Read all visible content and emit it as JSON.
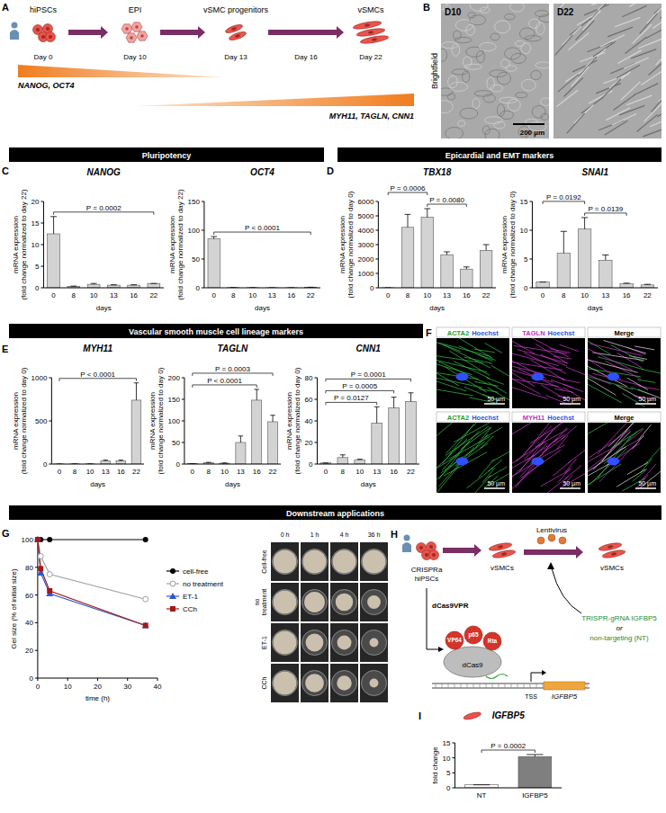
{
  "panel_letters": [
    "A",
    "B",
    "C",
    "D",
    "E",
    "F",
    "G",
    "H",
    "I"
  ],
  "section_headers": [
    "Pluripotency",
    "Epicardial and EMT markers",
    "Vascular smooth muscle cell lineage markers",
    "Downstream applications"
  ],
  "panel_A": {
    "stages": [
      "hiPSCs",
      "EPI",
      "vSMC progenitors",
      "vSMCs"
    ],
    "days": [
      "Day 0",
      "Day 10",
      "Day 13",
      "Day 16",
      "Day 22"
    ],
    "decreasing": "NANOG, OCT4",
    "increasing": "MYH11, TAGLN, CNN1"
  },
  "panel_B": {
    "side_label": "Brightfield",
    "images": [
      "D10",
      "D22"
    ],
    "scale_bar": "200 µm"
  },
  "panel_F": {
    "rows": [
      [
        [
          "ACTA2",
          "Hoechst"
        ],
        [
          "TAGLN",
          "Hoechst"
        ],
        [
          "Merge"
        ]
      ],
      [
        [
          "ACTA2",
          "Hoechst"
        ],
        [
          "MYH11",
          "Hoechst"
        ],
        [
          "Merge"
        ]
      ]
    ],
    "scale_bar": "50 µm"
  },
  "panel_G": {
    "columns": [
      "0 h",
      "1 h",
      "4 h",
      "36 h"
    ],
    "rows": [
      "Cell-free",
      "no treatment",
      "ET-1",
      "CCh"
    ]
  },
  "panel_H": {
    "start": "CRISPRa hiPSCs",
    "cells": "vSMCs",
    "virus": "Lentivirus",
    "end": "vSMCs",
    "construct": "dCas9VPR",
    "domains": [
      "VP64",
      "p65",
      "Rta"
    ],
    "protein": "dCas9",
    "tss": "TSS",
    "gene": "IGFBP5",
    "guide": "TRISPR-gRNA IGFBP5",
    "or": "or",
    "control": "non-targeting (NT)"
  },
  "chart_data": [
    {
      "type": "bar",
      "title": "NANOG",
      "categories": [
        "0",
        "8",
        "10",
        "13",
        "16",
        "22"
      ],
      "values": [
        12.5,
        0.3,
        0.8,
        0.6,
        0.6,
        1
      ],
      "errors": [
        4,
        0.1,
        0.2,
        0.1,
        0.1,
        0
      ],
      "color": "#d3d3d3",
      "xlabel": "days",
      "ylabel": [
        "mRNA expression",
        "(fold change normalized to day 22)"
      ],
      "ylim": [
        0,
        20
      ],
      "yticks": [
        0,
        5,
        10,
        15,
        20
      ],
      "annotations": [
        {
          "text": "P = 0.0002",
          "from": "0",
          "to": "22"
        }
      ]
    },
    {
      "type": "bar",
      "title": "OCT4",
      "categories": [
        "0",
        "8",
        "10",
        "13",
        "16",
        "22"
      ],
      "values": [
        85,
        0.3,
        0.2,
        0.1,
        0.1,
        1
      ],
      "errors": [
        4,
        0.1,
        0.1,
        0,
        0,
        0
      ],
      "color": "#d3d3d3",
      "xlabel": "days",
      "ylabel": [
        "mRNA expression",
        "(fold change normalized to day 22)"
      ],
      "ylim": [
        0,
        150
      ],
      "yticks": [
        0,
        50,
        100,
        150
      ],
      "annotations": [
        {
          "text": "P < 0.0001",
          "from": "0",
          "to": "22"
        }
      ]
    },
    {
      "type": "bar",
      "title": "TBX18",
      "categories": [
        "0",
        "8",
        "10",
        "13",
        "16",
        "22"
      ],
      "values": [
        1,
        4200,
        4900,
        2300,
        1300,
        2600
      ],
      "errors": [
        0,
        900,
        600,
        200,
        150,
        400
      ],
      "color": "#d3d3d3",
      "xlabel": "days",
      "ylabel": [
        "mRNA expression",
        "(fold change normalized to day 0)"
      ],
      "ylim": [
        0,
        6000
      ],
      "yticks": [
        0,
        1000,
        2000,
        3000,
        4000,
        5000,
        6000
      ],
      "annotations": [
        {
          "text": "P = 0.0080",
          "from": "10",
          "to": "16"
        },
        {
          "text": "P = 0.0006",
          "from": "0",
          "to": "10"
        }
      ]
    },
    {
      "type": "bar",
      "title": "SNAI1",
      "categories": [
        "0",
        "8",
        "10",
        "13",
        "16",
        "22"
      ],
      "values": [
        1,
        6,
        10.2,
        4.8,
        0.7,
        0.5
      ],
      "errors": [
        0,
        3.8,
        2,
        0.9,
        0.1,
        0.1
      ],
      "color": "#d3d3d3",
      "xlabel": "days",
      "ylabel": [
        "mRNA expression",
        "(fold change normalized to day 0)"
      ],
      "ylim": [
        0,
        15
      ],
      "yticks": [
        0,
        5,
        10,
        15
      ],
      "annotations": [
        {
          "text": "P = 0.0139",
          "from": "10",
          "to": "16"
        },
        {
          "text": "P = 0.0192",
          "from": "0",
          "to": "10"
        }
      ]
    },
    {
      "type": "bar",
      "title": "MYH11",
      "categories": [
        "0",
        "8",
        "10",
        "13",
        "16",
        "22"
      ],
      "values": [
        1,
        2,
        2,
        38,
        38,
        740
      ],
      "errors": [
        0,
        0.5,
        0.5,
        8,
        8,
        200
      ],
      "color": "#d3d3d3",
      "xlabel": "days",
      "ylabel": [
        "mRNA expression",
        "(fold change normalized to day 0)"
      ],
      "ylim": [
        0,
        1000
      ],
      "yticks": [
        0,
        500,
        1000
      ],
      "annotations": [
        {
          "text": "P < 0.0001",
          "from": "0",
          "to": "22"
        }
      ]
    },
    {
      "type": "bar",
      "title": "TAGLN",
      "categories": [
        "0",
        "8",
        "10",
        "13",
        "16",
        "22"
      ],
      "values": [
        1,
        3,
        2,
        50,
        148,
        98
      ],
      "errors": [
        0,
        1,
        0.5,
        15,
        25,
        15
      ],
      "color": "#d3d3d3",
      "xlabel": "days",
      "ylabel": [
        "mRNA expression",
        "(fold change normalized to day 0)"
      ],
      "ylim": [
        0,
        200
      ],
      "yticks": [
        0,
        50,
        100,
        150,
        200
      ],
      "annotations": [
        {
          "text": "P < 0.0001",
          "from": "0",
          "to": "16"
        },
        {
          "text": "P = 0.0003",
          "from": "0",
          "to": "22"
        }
      ]
    },
    {
      "type": "bar",
      "title": "CNN1",
      "categories": [
        "0",
        "8",
        "10",
        "13",
        "16",
        "22"
      ],
      "values": [
        1,
        6,
        4,
        38,
        52,
        58
      ],
      "errors": [
        0,
        2.5,
        0.5,
        15,
        10,
        8
      ],
      "color": "#d3d3d3",
      "xlabel": "days",
      "ylabel": [
        "mRNA expression",
        "(fold change normalized to day 0)"
      ],
      "ylim": [
        0,
        80
      ],
      "yticks": [
        0,
        20,
        40,
        60,
        80
      ],
      "annotations": [
        {
          "text": "P = 0.0127",
          "from": "0",
          "to": "13"
        },
        {
          "text": "P = 0.0005",
          "from": "0",
          "to": "16"
        },
        {
          "text": "P = 0.0001",
          "from": "0",
          "to": "22"
        }
      ]
    },
    {
      "type": "line",
      "x": [
        0,
        1,
        4,
        36
      ],
      "xlabel": "time (h)",
      "ylabel": "Gel size (% of initial size)",
      "xlim": [
        0,
        40
      ],
      "xticks": [
        0,
        10,
        20,
        30,
        40
      ],
      "ylim": [
        0,
        100
      ],
      "yticks": [
        0,
        20,
        40,
        60,
        80,
        100
      ],
      "legend": "right",
      "series": [
        {
          "name": "cell-free",
          "color": "#000000",
          "marker": "circle",
          "values": [
            100,
            100,
            100,
            100
          ]
        },
        {
          "name": "no treatment",
          "color": "#a0a0a0",
          "marker": "open-circle",
          "values": [
            100,
            88,
            75,
            57
          ]
        },
        {
          "name": "ET-1",
          "color": "#2f55d4",
          "marker": "triangle",
          "values": [
            100,
            76,
            61,
            38
          ]
        },
        {
          "name": "CCh",
          "color": "#9e1b1b",
          "marker": "square",
          "values": [
            100,
            79,
            63,
            38
          ]
        }
      ]
    },
    {
      "type": "bar",
      "title": "IGFBP5",
      "categories": [
        "NT",
        "IGFBP5"
      ],
      "values": [
        1,
        10.4
      ],
      "errors": [
        0,
        0.7
      ],
      "colors": [
        "#ffffff",
        "#7f7f7f"
      ],
      "ylabel": "fold change",
      "ylim": [
        0,
        15
      ],
      "yticks": [
        0,
        5,
        10,
        15
      ],
      "annotations": [
        {
          "text": "P = 0.0002",
          "from": "NT",
          "to": "IGFBP5"
        }
      ]
    }
  ]
}
